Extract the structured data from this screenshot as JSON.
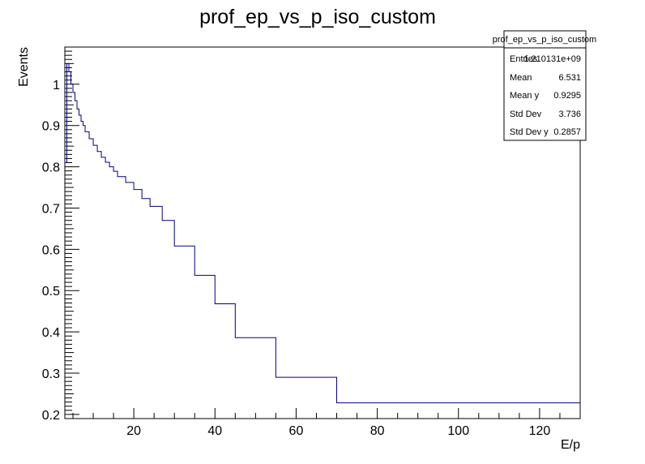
{
  "chart_data": {
    "type": "line",
    "title": "prof_ep_vs_p_iso_custom",
    "xlabel": "E/p",
    "ylabel": "Events",
    "xlim": [
      3,
      130
    ],
    "ylim": [
      0.19,
      1.09
    ],
    "line_color": "#000080",
    "x_ticks": [
      20,
      40,
      60,
      80,
      100,
      120
    ],
    "y_ticks": [
      0.2,
      0.3,
      0.4,
      0.5,
      0.6,
      0.7,
      0.8,
      0.9,
      1
    ],
    "x_tick_labels": [
      "20",
      "40",
      "60",
      "80",
      "100",
      "120"
    ],
    "y_tick_labels": [
      "0.2",
      "0.3",
      "0.4",
      "0.5",
      "0.6",
      "0.7",
      "0.8",
      "0.9",
      "1"
    ],
    "bins": [
      {
        "x0": 3.0,
        "x1": 3.5,
        "y": 0.81
      },
      {
        "x0": 3.5,
        "x1": 4.0,
        "y": 1.05
      },
      {
        "x0": 4.0,
        "x1": 4.5,
        "y": 1.03
      },
      {
        "x0": 4.5,
        "x1": 5.0,
        "y": 1.0
      },
      {
        "x0": 5.0,
        "x1": 5.5,
        "y": 0.98
      },
      {
        "x0": 5.5,
        "x1": 6.0,
        "y": 0.96
      },
      {
        "x0": 6.0,
        "x1": 6.5,
        "y": 0.94
      },
      {
        "x0": 6.5,
        "x1": 7.0,
        "y": 0.925
      },
      {
        "x0": 7.0,
        "x1": 7.5,
        "y": 0.91
      },
      {
        "x0": 7.5,
        "x1": 8.0,
        "y": 0.9
      },
      {
        "x0": 8.0,
        "x1": 9.0,
        "y": 0.885
      },
      {
        "x0": 9.0,
        "x1": 10.0,
        "y": 0.868
      },
      {
        "x0": 10.0,
        "x1": 11.0,
        "y": 0.852
      },
      {
        "x0": 11.0,
        "x1": 12.0,
        "y": 0.837
      },
      {
        "x0": 12.0,
        "x1": 13.0,
        "y": 0.823
      },
      {
        "x0": 13.0,
        "x1": 14.0,
        "y": 0.811
      },
      {
        "x0": 14.0,
        "x1": 15.0,
        "y": 0.8
      },
      {
        "x0": 15.0,
        "x1": 16.0,
        "y": 0.789
      },
      {
        "x0": 16.0,
        "x1": 18.0,
        "y": 0.776
      },
      {
        "x0": 18.0,
        "x1": 20.0,
        "y": 0.762
      },
      {
        "x0": 20.0,
        "x1": 22.0,
        "y": 0.745
      },
      {
        "x0": 22.0,
        "x1": 24.0,
        "y": 0.723
      },
      {
        "x0": 24.0,
        "x1": 27.0,
        "y": 0.704
      },
      {
        "x0": 27.0,
        "x1": 30.0,
        "y": 0.67
      },
      {
        "x0": 30.0,
        "x1": 35.0,
        "y": 0.608
      },
      {
        "x0": 35.0,
        "x1": 40.0,
        "y": 0.537
      },
      {
        "x0": 40.0,
        "x1": 45.0,
        "y": 0.468
      },
      {
        "x0": 45.0,
        "x1": 55.0,
        "y": 0.386
      },
      {
        "x0": 55.0,
        "x1": 70.0,
        "y": 0.29
      },
      {
        "x0": 70.0,
        "x1": 130.0,
        "y": 0.228
      }
    ],
    "stats": {
      "title": "prof_ep_vs_p_iso_custom",
      "rows": [
        {
          "label": "Entries",
          "value": "1.210131e+09"
        },
        {
          "label": "Mean",
          "value": "6.531"
        },
        {
          "label": "Mean y",
          "value": "0.9295"
        },
        {
          "label": "Std Dev",
          "value": "3.736"
        },
        {
          "label": "Std Dev y",
          "value": "0.2857"
        }
      ]
    }
  }
}
